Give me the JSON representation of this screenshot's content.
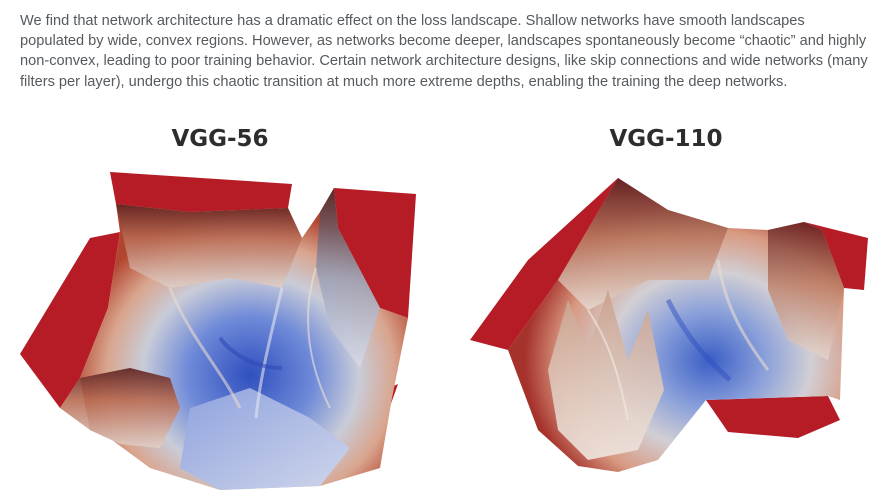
{
  "intro": {
    "text": "We find that network architecture has a dramatic effect on the loss landscape. Shallow networks have smooth landscapes populated by wide, convex regions. However, as networks become deeper, landscapes spontaneously become “chaotic” and highly non-convex, leading to poor training behavior. Certain network architecture designs, like skip connections and wide networks (many filters per layer), undergo this chaotic transition at much more extreme depths, enabling the training the deep networks."
  },
  "figures": [
    {
      "title": "VGG-56"
    },
    {
      "title": "VGG-110"
    }
  ],
  "colors": {
    "text": "#555a5e",
    "heading": "#2d2d2d",
    "surface_high": "#b01a23",
    "surface_mid": "#d8c3b6",
    "surface_low": "#3a5fc8"
  }
}
